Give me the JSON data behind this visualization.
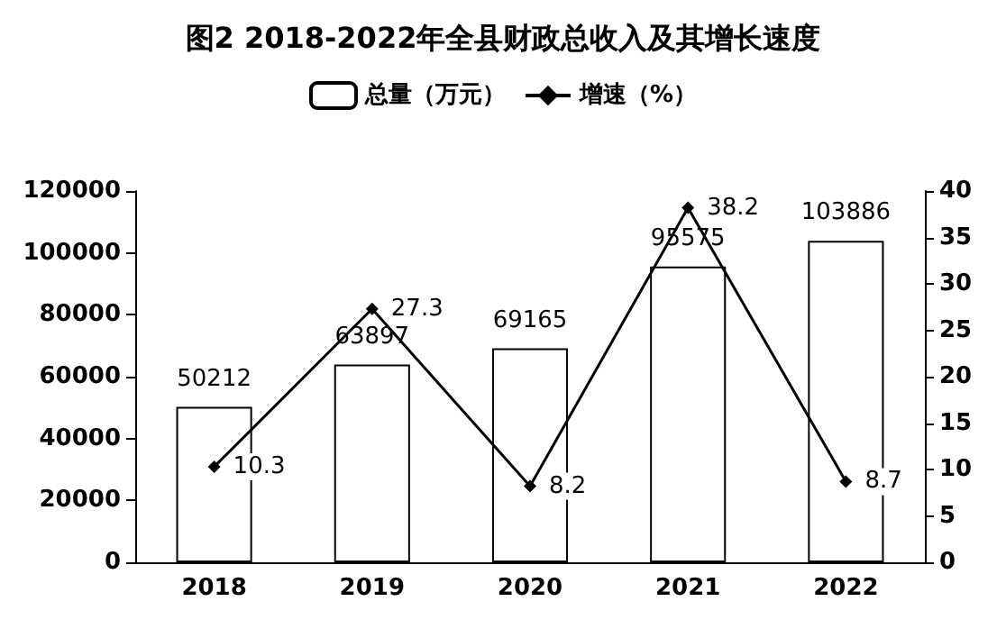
{
  "chart_data": {
    "type": "bar",
    "title": "图2 2018-2022年全县财政总收入及其增长速度",
    "categories": [
      "2018",
      "2019",
      "2020",
      "2021",
      "2022"
    ],
    "series": [
      {
        "name": "总量（万元）",
        "type": "bar",
        "color": "#ffffff",
        "values": [
          50212,
          63897,
          69165,
          95575,
          103886
        ]
      },
      {
        "name": "增速（%）",
        "type": "line",
        "axis": "y2",
        "color": "#000000",
        "values": [
          10.3,
          27.3,
          8.2,
          38.2,
          8.7
        ]
      }
    ],
    "ylim": [
      0,
      120000
    ],
    "yticks": [
      0,
      20000,
      40000,
      60000,
      80000,
      100000,
      120000
    ],
    "y2lim": [
      0,
      40
    ],
    "y2ticks": [
      0,
      5,
      10,
      15,
      20,
      25,
      30,
      35,
      40
    ],
    "data_labels": true,
    "grid": false,
    "legend": "top",
    "marker": "diamond",
    "line_style": "solid"
  }
}
